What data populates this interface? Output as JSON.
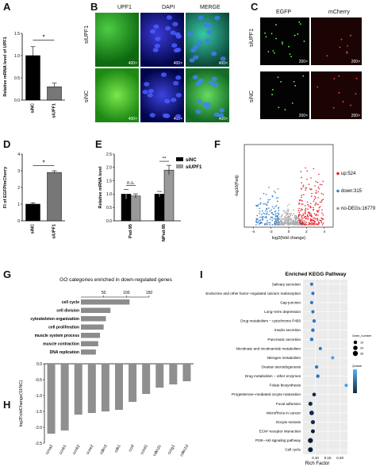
{
  "panels": {
    "A": {
      "letter": "A",
      "ylabel": "Relative mRNA level of UPF1",
      "yticks": [
        "0.0",
        "0.5",
        "1.0",
        "1.5"
      ],
      "categories": [
        "siNC",
        "siUPF1"
      ],
      "sig": "*"
    },
    "B": {
      "letter": "B",
      "cols": [
        "UPF1",
        "DAPI",
        "MERGE"
      ],
      "rows": [
        "siUPF1",
        "siNC"
      ],
      "mag": "400×"
    },
    "C": {
      "letter": "C",
      "cols": [
        "EGFP",
        "mCherry"
      ],
      "rows": [
        "siUPF1",
        "siNC"
      ],
      "mag": "200×"
    },
    "D": {
      "letter": "D",
      "ylabel": "FI of EGFP/mCherry",
      "yticks": [
        "0",
        "1",
        "2",
        "3",
        "4"
      ],
      "categories": [
        "siNC",
        "siUPF1"
      ],
      "sig": "*"
    },
    "E": {
      "letter": "E",
      "ylabel": "Relative mRNA level",
      "yticks": [
        "0.0",
        "0.5",
        "1.0",
        "1.5",
        "2.0",
        "2.5"
      ],
      "categories": [
        "Psd-95",
        "NPsd-95"
      ],
      "sig_left": "n.s.",
      "sig_right": "**",
      "legend": [
        "siNC",
        "siUPF1"
      ]
    },
    "F": {
      "letter": "F",
      "xlabel": "log2(fold change)",
      "ylabel": "-log10(Padj)",
      "xticks": [
        "-4",
        "-2",
        "0",
        "2",
        "4"
      ],
      "legend": [
        "up:524",
        "down:315",
        "no-DEGs:16779"
      ]
    },
    "G": {
      "letter": "G",
      "title": "GO categories enriched in down-regulated genes",
      "xticks": [
        "50",
        "100",
        "150"
      ]
    },
    "H": {
      "letter": "H",
      "ylabel": "log2FoldChange(SI/NC)",
      "yticks": [
        "0.0",
        "-0.5",
        "-1.0",
        "-1.5",
        "-2.0",
        "-2.5"
      ]
    },
    "I": {
      "letter": "I",
      "title": "Enriched KEGG Pathway",
      "xlabel": "Rich Factor",
      "xticks": [
        "0.10",
        "0.15",
        "0.20"
      ],
      "size_legend_title": "Gene_number",
      "size_legend": [
        "10",
        "20",
        "30"
      ],
      "color_legend_title": "Qvalue"
    }
  },
  "chart_data": [
    {
      "id": "A",
      "type": "bar",
      "categories": [
        "siNC",
        "siUPF1"
      ],
      "values": [
        1.0,
        0.3
      ],
      "errors": [
        0.2,
        0.08
      ],
      "ylabel": "Relative mRNA level of UPF1",
      "ylim": [
        0,
        1.5
      ]
    },
    {
      "id": "D",
      "type": "bar",
      "categories": [
        "siNC",
        "siUPF1"
      ],
      "values": [
        1.0,
        2.9
      ],
      "errors": [
        0.08,
        0.1
      ],
      "ylabel": "FI of EGFP/mCherry",
      "ylim": [
        0,
        4
      ]
    },
    {
      "id": "E",
      "type": "bar",
      "categories": [
        "Psd-95",
        "NPsd-95"
      ],
      "series": [
        {
          "name": "siNC",
          "values": [
            1.0,
            1.0
          ],
          "errors": [
            0.18,
            0.1
          ]
        },
        {
          "name": "siUPF1",
          "values": [
            0.93,
            1.9
          ],
          "errors": [
            0.08,
            0.18
          ]
        }
      ],
      "ylabel": "Relative mRNA level",
      "ylim": [
        0,
        2.5
      ]
    },
    {
      "id": "G",
      "type": "bar",
      "orientation": "horizontal",
      "title": "GO categories enriched in down-regulated genes",
      "categories": [
        "cell cycle",
        "cell division",
        "cytoskeleton organization",
        "cell proliferation",
        "muscle system process",
        "muscle contraction",
        "DNA replication"
      ],
      "values": [
        107,
        65,
        55,
        50,
        42,
        38,
        33
      ],
      "xlim": [
        0,
        150
      ]
    },
    {
      "id": "H",
      "type": "bar",
      "ylabel": "log2FoldChange(SI/NC)",
      "categories": [
        "ccna2",
        "ccnb1",
        "ccnb2",
        "ccne2",
        "cdkn3",
        "cdk1",
        "ccnf",
        "ccnd1",
        "cdkn2c",
        "ccng1",
        "cdkn1d"
      ],
      "values": [
        -2.2,
        -2.1,
        -1.6,
        -1.55,
        -1.5,
        -1.45,
        -1.2,
        -0.95,
        -0.75,
        -0.65,
        -0.55
      ],
      "ylim": [
        -2.5,
        0
      ]
    },
    {
      "id": "I",
      "type": "scatter",
      "title": "Enriched KEGG Pathway",
      "xlabel": "Rich Factor",
      "categories": [
        "Salivary secretion",
        "Endocrine and other factor−regulated calcium reabsorption",
        "Gap junction",
        "Long−term depression",
        "Drug metabolism − cytochrome P450",
        "Insulin secretion",
        "Pancreatic secretion",
        "Nicotinate and nicotinamide metabolism",
        "Nitrogen metabolism",
        "Ovarian steroidogenesis",
        "Drug metabolism − other enzymes",
        "Folate biosynthesis",
        "Progesterone−mediated oocyte maturation",
        "Focal adhesion",
        "MicroRNAs in cancer",
        "Oocyte meiosis",
        "ECM−receptor interaction",
        "PI3K−Akt signaling pathway",
        "Cell cycle"
      ],
      "x": [
        0.085,
        0.09,
        0.085,
        0.09,
        0.095,
        0.09,
        0.085,
        0.12,
        0.17,
        0.105,
        0.11,
        0.225,
        0.095,
        0.08,
        0.085,
        0.09,
        0.09,
        0.08,
        0.08
      ],
      "sizes": [
        8,
        8,
        8,
        8,
        9,
        10,
        10,
        8,
        8,
        9,
        10,
        8,
        12,
        16,
        22,
        16,
        14,
        28,
        26
      ],
      "xlim": [
        0.05,
        0.23
      ]
    }
  ]
}
